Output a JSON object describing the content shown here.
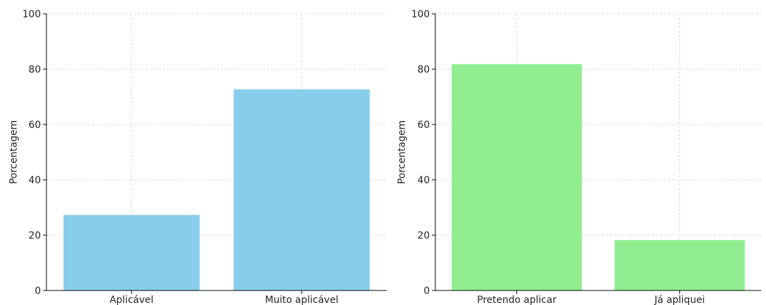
{
  "chart_data": [
    {
      "type": "bar",
      "title": "",
      "xlabel": "",
      "ylabel": "Porcentagem",
      "ylim": [
        0,
        100
      ],
      "yticks": [
        0,
        20,
        40,
        60,
        80,
        100
      ],
      "grid": true,
      "color": "#87ceeb",
      "categories": [
        "Aplicável",
        "Muito aplicável"
      ],
      "values": [
        27.3,
        72.7
      ]
    },
    {
      "type": "bar",
      "title": "",
      "xlabel": "",
      "ylabel": "Porcentagem",
      "ylim": [
        0,
        100
      ],
      "yticks": [
        0,
        20,
        40,
        60,
        80,
        100
      ],
      "grid": true,
      "color": "#90ee90",
      "categories": [
        "Pretendo aplicar",
        "Já apliquei"
      ],
      "values": [
        81.8,
        18.2
      ]
    }
  ]
}
